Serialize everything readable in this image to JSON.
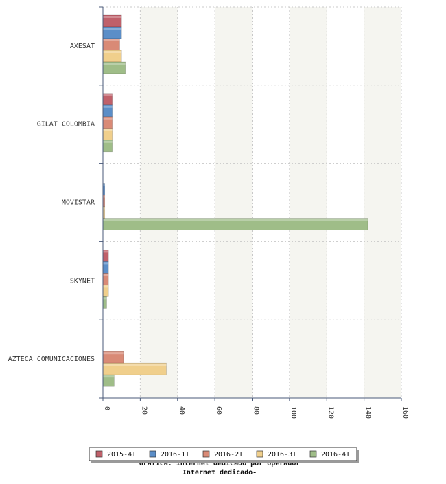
{
  "chart_data": {
    "type": "bar",
    "orientation": "horizontal",
    "categories": [
      "AXESAT",
      "GILAT COLOMBIA",
      "MOVISTAR",
      "SKYNET",
      "AZTECA COMUNICACIONES"
    ],
    "series": [
      {
        "name": "2015-4T",
        "color": "#c0606a",
        "values": [
          10,
          5,
          0,
          3,
          0
        ]
      },
      {
        "name": "2016-1T",
        "color": "#5b8ec8",
        "values": [
          10,
          5,
          1,
          3,
          0
        ]
      },
      {
        "name": "2016-2T",
        "color": "#d98a76",
        "values": [
          9,
          5,
          1,
          3,
          11
        ]
      },
      {
        "name": "2016-3T",
        "color": "#f0cf8c",
        "values": [
          10,
          5,
          1,
          3,
          34
        ]
      },
      {
        "name": "2016-4T",
        "color": "#9fbd88",
        "values": [
          12,
          5,
          142,
          2,
          6
        ]
      }
    ],
    "xlim": [
      0,
      160
    ],
    "xticks": [
      "0",
      "20",
      "40",
      "60",
      "80",
      "100",
      "120",
      "140",
      "160"
    ],
    "grid": true,
    "legend_position": "bottom",
    "caption": [
      "Grafica: Internet dedicado por operador",
      "Internet dedicado-"
    ]
  }
}
